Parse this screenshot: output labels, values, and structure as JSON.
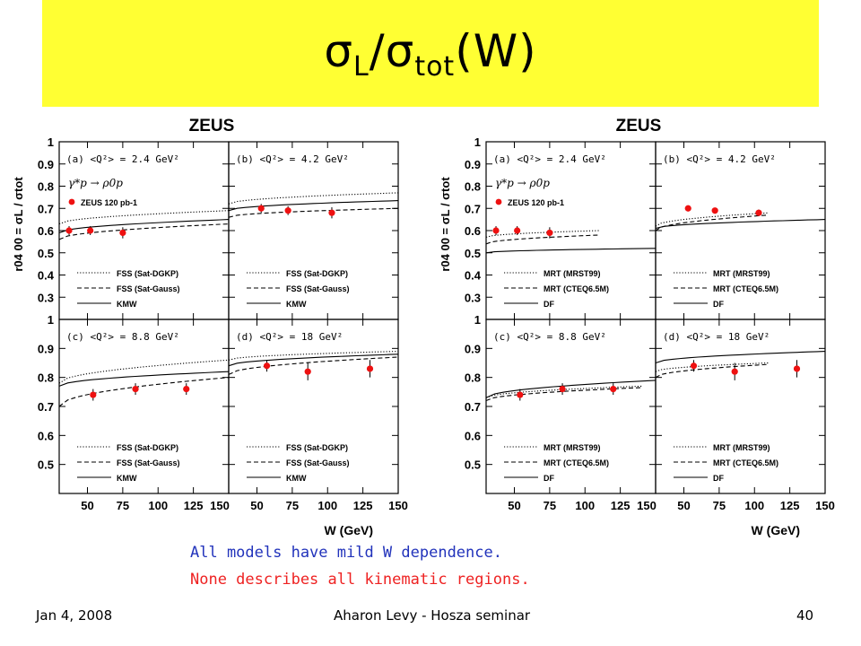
{
  "slide": {
    "title_main": "σ",
    "title_sub1": "L",
    "title_mid": "/σ",
    "title_sub2": "tot",
    "title_end": "(W)",
    "notes": [
      "All models have mild W dependence.",
      "None describes all kinematic regions."
    ],
    "footer": {
      "date": "Jan 4, 2008",
      "center": "Aharon Levy - Hosza seminar",
      "page": "40"
    },
    "colors": {
      "title_bg": "#ffff33",
      "note1": "#2233bb",
      "note2": "#ee2222",
      "data_points": "#ee1111"
    }
  },
  "chart_data": [
    {
      "type": "scatter",
      "title": "ZEUS",
      "xlabel": "W (GeV)",
      "ylabel": "r04 00 = σL / σtot",
      "x_ticks": [
        "50",
        "75",
        "100",
        "125",
        "150"
      ],
      "process": "γ*p → ρ0p",
      "data_label": "ZEUS 120 pb-1",
      "legend": [
        "FSS (Sat-DGKP)",
        "FSS (Sat-Gauss)",
        "KMW"
      ],
      "panels": [
        {
          "label": "(a)  <Q²> = 2.4 GeV²",
          "xlim": [
            30,
            150
          ],
          "ylim": [
            0.2,
            1.0
          ],
          "y_ticks": [
            0.3,
            0.4,
            0.5,
            0.6,
            0.7,
            0.8,
            0.9,
            1
          ],
          "points": [
            {
              "x": 37,
              "y": 0.6,
              "err": 0.02
            },
            {
              "x": 52,
              "y": 0.6,
              "err": 0.02
            },
            {
              "x": 75,
              "y": 0.59,
              "err": 0.025
            }
          ],
          "curves": [
            {
              "style": "dotted",
              "x": [
                30,
                150
              ],
              "y": [
                0.63,
                0.69
              ]
            },
            {
              "style": "dashed",
              "x": [
                30,
                150
              ],
              "y": [
                0.56,
                0.63
              ]
            },
            {
              "style": "solid",
              "x": [
                30,
                150
              ],
              "y": [
                0.59,
                0.65
              ]
            }
          ]
        },
        {
          "label": "(b)  <Q²> = 4.2 GeV²",
          "xlim": [
            30,
            150
          ],
          "ylim": [
            0.2,
            1.0
          ],
          "points": [
            {
              "x": 53,
              "y": 0.7,
              "err": 0.02
            },
            {
              "x": 72,
              "y": 0.69,
              "err": 0.02
            },
            {
              "x": 103,
              "y": 0.68,
              "err": 0.025
            }
          ],
          "curves": [
            {
              "style": "dotted",
              "x": [
                30,
                150
              ],
              "y": [
                0.72,
                0.77
              ]
            },
            {
              "style": "dashed",
              "x": [
                30,
                150
              ],
              "y": [
                0.66,
                0.7
              ]
            },
            {
              "style": "solid",
              "x": [
                30,
                150
              ],
              "y": [
                0.69,
                0.735
              ]
            }
          ]
        },
        {
          "label": "(c)  <Q²> = 8.8 GeV²",
          "xlim": [
            30,
            150
          ],
          "ylim": [
            0.4,
            1.0
          ],
          "y_ticks": [
            0.5,
            0.6,
            0.7,
            0.8,
            0.9,
            1
          ],
          "points": [
            {
              "x": 54,
              "y": 0.74,
              "err": 0.02
            },
            {
              "x": 84,
              "y": 0.76,
              "err": 0.02
            },
            {
              "x": 120,
              "y": 0.76,
              "err": 0.02
            }
          ],
          "curves": [
            {
              "style": "dotted",
              "x": [
                30,
                150
              ],
              "y": [
                0.78,
                0.86
              ]
            },
            {
              "style": "dashed",
              "x": [
                30,
                150
              ],
              "y": [
                0.7,
                0.8
              ]
            },
            {
              "style": "solid",
              "x": [
                30,
                150
              ],
              "y": [
                0.77,
                0.82
              ]
            }
          ]
        },
        {
          "label": "(d)  <Q²> = 18 GeV²",
          "xlim": [
            30,
            150
          ],
          "ylim": [
            0.4,
            1.0
          ],
          "points": [
            {
              "x": 57,
              "y": 0.84,
              "err": 0.02
            },
            {
              "x": 86,
              "y": 0.82,
              "err": 0.03
            },
            {
              "x": 130,
              "y": 0.83,
              "err": 0.03
            }
          ],
          "curves": [
            {
              "style": "dotted",
              "x": [
                30,
                150
              ],
              "y": [
                0.86,
                0.89
              ]
            },
            {
              "style": "dashed",
              "x": [
                30,
                150
              ],
              "y": [
                0.81,
                0.87
              ]
            },
            {
              "style": "solid",
              "x": [
                30,
                150
              ],
              "y": [
                0.84,
                0.88
              ]
            }
          ]
        }
      ]
    },
    {
      "type": "scatter",
      "title": "ZEUS",
      "xlabel": "W (GeV)",
      "ylabel": "r04 00 = σL / σtot",
      "x_ticks": [
        "50",
        "75",
        "100",
        "125",
        "150"
      ],
      "process": "γ*p → ρ0p",
      "data_label": "ZEUS 120 pb-1",
      "legend": [
        "MRT (MRST99)",
        "MRT (CTEQ6.5M)",
        "DF"
      ],
      "panels": [
        {
          "label": "(a)  <Q²> = 2.4 GeV²",
          "xlim": [
            30,
            150
          ],
          "ylim": [
            0.2,
            1.0
          ],
          "y_ticks": [
            0.3,
            0.4,
            0.5,
            0.6,
            0.7,
            0.8,
            0.9,
            1
          ],
          "points": [
            {
              "x": 37,
              "y": 0.6,
              "err": 0.02
            },
            {
              "x": 52,
              "y": 0.6,
              "err": 0.02
            },
            {
              "x": 75,
              "y": 0.59,
              "err": 0.025
            }
          ],
          "curves": [
            {
              "style": "dotted",
              "x": [
                30,
                110
              ],
              "y": [
                0.57,
                0.6
              ]
            },
            {
              "style": "dashed",
              "x": [
                30,
                110
              ],
              "y": [
                0.54,
                0.58
              ]
            },
            {
              "style": "solid",
              "x": [
                30,
                150
              ],
              "y": [
                0.5,
                0.52
              ]
            }
          ]
        },
        {
          "label": "(b)  <Q²> = 4.2 GeV²",
          "xlim": [
            30,
            150
          ],
          "ylim": [
            0.2,
            1.0
          ],
          "points": [
            {
              "x": 53,
              "y": 0.7,
              "err": 0.01
            },
            {
              "x": 72,
              "y": 0.69,
              "err": 0.01
            },
            {
              "x": 103,
              "y": 0.68,
              "err": 0.015
            }
          ],
          "curves": [
            {
              "style": "dotted",
              "x": [
                30,
                110
              ],
              "y": [
                0.62,
                0.68
              ]
            },
            {
              "style": "dashed",
              "x": [
                30,
                110
              ],
              "y": [
                0.6,
                0.67
              ]
            },
            {
              "style": "solid",
              "x": [
                30,
                150
              ],
              "y": [
                0.61,
                0.65
              ]
            }
          ]
        },
        {
          "label": "(c)  <Q²> = 8.8 GeV²",
          "xlim": [
            30,
            150
          ],
          "ylim": [
            0.4,
            1.0
          ],
          "y_ticks": [
            0.5,
            0.6,
            0.7,
            0.8,
            0.9,
            1
          ],
          "points": [
            {
              "x": 54,
              "y": 0.74,
              "err": 0.02
            },
            {
              "x": 84,
              "y": 0.76,
              "err": 0.02
            },
            {
              "x": 120,
              "y": 0.76,
              "err": 0.02
            }
          ],
          "curves": [
            {
              "style": "dotted",
              "x": [
                30,
                140
              ],
              "y": [
                0.73,
                0.77
              ]
            },
            {
              "style": "dashed",
              "x": [
                30,
                140
              ],
              "y": [
                0.72,
                0.765
              ]
            },
            {
              "style": "solid",
              "x": [
                30,
                150
              ],
              "y": [
                0.73,
                0.79
              ]
            }
          ]
        },
        {
          "label": "(d)  <Q²> = 18 GeV²",
          "xlim": [
            30,
            150
          ],
          "ylim": [
            0.4,
            1.0
          ],
          "points": [
            {
              "x": 57,
              "y": 0.84,
              "err": 0.02
            },
            {
              "x": 86,
              "y": 0.82,
              "err": 0.03
            },
            {
              "x": 130,
              "y": 0.83,
              "err": 0.03
            }
          ],
          "curves": [
            {
              "style": "dotted",
              "x": [
                30,
                110
              ],
              "y": [
                0.82,
                0.85
              ]
            },
            {
              "style": "dashed",
              "x": [
                30,
                110
              ],
              "y": [
                0.8,
                0.845
              ]
            },
            {
              "style": "solid",
              "x": [
                30,
                150
              ],
              "y": [
                0.85,
                0.89
              ]
            }
          ]
        }
      ]
    }
  ]
}
